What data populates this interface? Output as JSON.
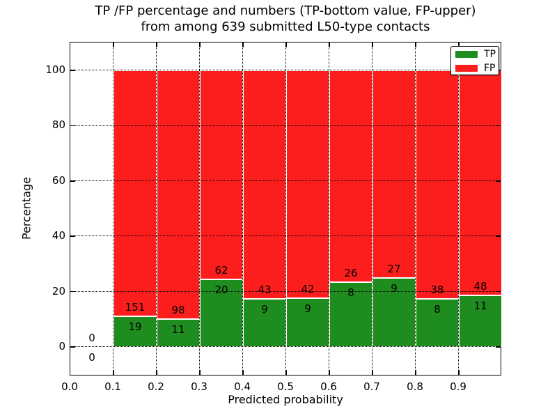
{
  "title": {
    "line1": "TP /FP percentage and numbers (TP-bottom value, FP-upper)",
    "line2": "from among 639 submitted L50-type contacts"
  },
  "axes": {
    "xlabel": "Predicted probability",
    "ylabel": "Percentage"
  },
  "legend": {
    "items": [
      {
        "label": "TP",
        "color": "#1e8c1e"
      },
      {
        "label": "FP",
        "color": "#fc1d1d"
      }
    ]
  },
  "chart_data": {
    "type": "bar",
    "stacked": true,
    "title": "TP /FP percentage and numbers (TP-bottom value, FP-upper)\nfrom among 639 submitted L50-type contacts",
    "xlabel": "Predicted probability",
    "ylabel": "Percentage",
    "xlim": [
      0.0,
      1.0
    ],
    "ylim": [
      -10.6,
      110.1
    ],
    "grid": true,
    "legend_position": "upper right",
    "bin_edges": [
      0.0,
      0.1,
      0.2,
      0.3,
      0.4,
      0.5,
      0.6,
      0.7,
      0.8,
      0.9,
      1.0
    ],
    "xticks": [
      "0.0",
      "0.1",
      "0.2",
      "0.3",
      "0.4",
      "0.5",
      "0.6",
      "0.7",
      "0.8",
      "0.9"
    ],
    "yticks": [
      0,
      20,
      40,
      60,
      80,
      100
    ],
    "series": [
      {
        "name": "TP",
        "color": "#1e8c1e",
        "counts": [
          0,
          19,
          11,
          20,
          9,
          9,
          8,
          9,
          8,
          11
        ],
        "pct": [
          0,
          11.18,
          10.09,
          24.39,
          17.31,
          17.65,
          23.53,
          25.0,
          17.39,
          18.64
        ]
      },
      {
        "name": "FP",
        "color": "#fc1d1d",
        "counts": [
          0,
          151,
          98,
          62,
          43,
          42,
          26,
          27,
          38,
          48
        ],
        "pct": [
          0,
          88.82,
          89.91,
          75.61,
          82.69,
          82.35,
          76.47,
          75.0,
          82.61,
          81.36
        ]
      }
    ]
  }
}
